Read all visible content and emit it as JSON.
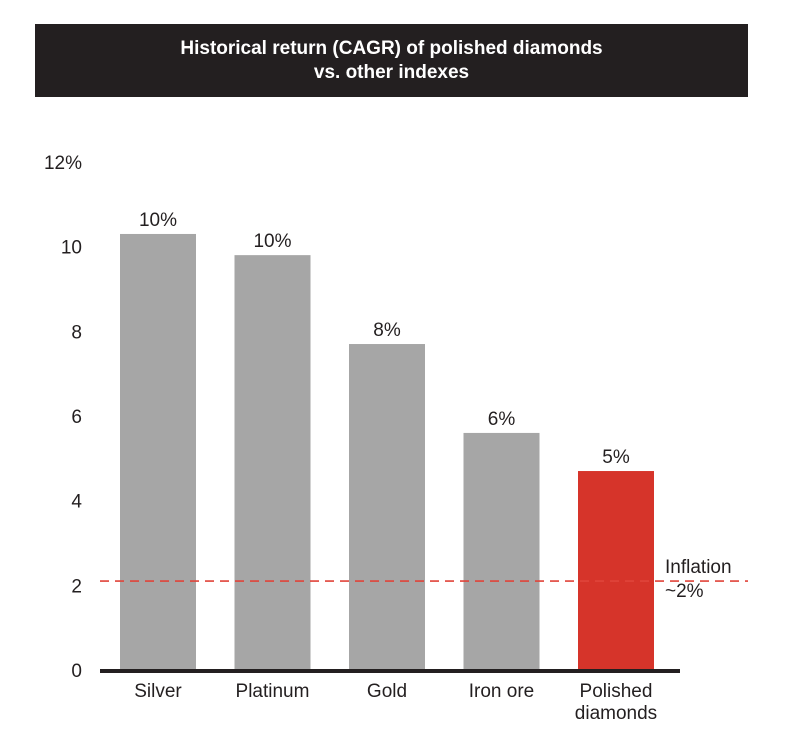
{
  "title": {
    "line1": "Historical return (CAGR) of polished diamonds",
    "line2": "vs. other indexes"
  },
  "colors": {
    "bar": "#a6a6a6",
    "highlight": "#d6342a",
    "reference_line": "#e0443a",
    "axis": "#231f20",
    "title_background": "#231f20"
  },
  "chart_data": {
    "type": "bar",
    "categories": [
      "Silver",
      "Platinum",
      "Gold",
      "Iron ore",
      "Polished diamonds"
    ],
    "category_lines": [
      [
        "Silver"
      ],
      [
        "Platinum"
      ],
      [
        "Gold"
      ],
      [
        "Iron ore"
      ],
      [
        "Polished",
        "diamonds"
      ]
    ],
    "values": [
      10.3,
      9.8,
      7.7,
      5.6,
      4.7
    ],
    "data_labels": [
      "10%",
      "10%",
      "8%",
      "6%",
      "5%"
    ],
    "highlight": "Polished diamonds",
    "title": "Historical return (CAGR) of polished diamonds vs. other indexes",
    "xlabel": "",
    "ylabel": "",
    "ylim": [
      0,
      12
    ],
    "y_ticks": [
      0,
      2,
      4,
      6,
      8,
      10,
      12
    ],
    "y_tick_labels": [
      "0",
      "2",
      "4",
      "6",
      "8",
      "10",
      "12%"
    ],
    "grid": false,
    "reference_line": {
      "value": 2.1,
      "style": "dashed",
      "label_lines": [
        "Inflation",
        "~2%"
      ]
    }
  }
}
